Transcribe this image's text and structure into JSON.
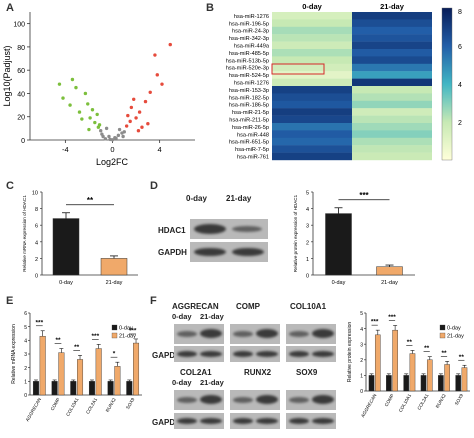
{
  "panels": {
    "A": {
      "letter": "A",
      "chart_data": {
        "type": "scatter",
        "xlabel": "Log2FC",
        "ylabel": "Log10(Padjust)",
        "xticks": [
          "-4",
          "0",
          "4"
        ],
        "yticks": [
          "0",
          "20",
          "40",
          "60",
          "80",
          "100"
        ],
        "xlim": [
          -7,
          7
        ],
        "ylim": [
          0,
          110
        ],
        "series": [
          {
            "color": "#7cbf3c",
            "points": [
              [
                -4.2,
                36
              ],
              [
                -3.6,
                30
              ],
              [
                -2.8,
                24
              ],
              [
                -2.3,
                40
              ],
              [
                -1.9,
                19
              ],
              [
                -1.5,
                15
              ],
              [
                -1.2,
                11
              ],
              [
                -2.1,
                31
              ],
              [
                -3.1,
                45
              ],
              [
                -1.7,
                26
              ],
              [
                -2.6,
                18
              ],
              [
                -1.3,
                22
              ],
              [
                -3.4,
                52
              ],
              [
                -2.0,
                9
              ],
              [
                -1.1,
                13
              ],
              [
                -4.5,
                48
              ]
            ]
          },
          {
            "color": "#e64b3c",
            "points": [
              [
                1.6,
                28
              ],
              [
                2.0,
                19
              ],
              [
                2.3,
                24
              ],
              [
                1.2,
                12
              ],
              [
                2.8,
                33
              ],
              [
                3.2,
                41
              ],
              [
                3.8,
                56
              ],
              [
                1.5,
                16
              ],
              [
                2.5,
                11
              ],
              [
                4.2,
                48
              ],
              [
                1.8,
                35
              ],
              [
                2.2,
                8
              ],
              [
                1.3,
                21
              ],
              [
                3.6,
                73
              ],
              [
                4.9,
                82
              ],
              [
                3.0,
                14
              ]
            ]
          },
          {
            "color": "#8c8c8c",
            "points": [
              [
                -0.6,
                1
              ],
              [
                -0.3,
                3
              ],
              [
                0.2,
                2
              ],
              [
                0.5,
                4
              ],
              [
                -0.9,
                5
              ],
              [
                0.8,
                6
              ],
              [
                -0.2,
                0.5
              ],
              [
                0.3,
                1.5
              ],
              [
                -1.0,
                8
              ],
              [
                1.0,
                7
              ],
              [
                -0.5,
                10
              ],
              [
                0.6,
                9
              ],
              [
                0.0,
                0.2
              ],
              [
                -0.8,
                3
              ],
              [
                0.9,
                3
              ]
            ]
          }
        ]
      }
    },
    "B": {
      "letter": "B",
      "chart_data": {
        "type": "heatmap",
        "columns": [
          "0-day",
          "21-day"
        ],
        "rows": [
          "hsa-miR-1276",
          "hsa-miR-196-5p",
          "hsa-miR-24-3p",
          "hsa-miR-342-3p",
          "hsa-miR-449a",
          "hsa-miR-485-5p",
          "hsa-miR-513b-5p",
          "hsa-miR-520e-3p",
          "hsa-miR-524-5p",
          "hsa-miR-1276",
          "hsa-miR-153-3p",
          "hsa-miR-182-5p",
          "hsa-miR-186-5p",
          "hsa-miR-21-5p",
          "hsa-miR-211-5p",
          "hsa-miR-26-5p",
          "hsa-miR-448",
          "hsa-miR-651-5p",
          "hsa-miR-7-5p",
          "hsa-miR-761"
        ],
        "values": [
          [
            1.5,
            7.0
          ],
          [
            2.0,
            6.5
          ],
          [
            2.5,
            6.0
          ],
          [
            2.2,
            6.3
          ],
          [
            1.8,
            6.8
          ],
          [
            2.4,
            6.1
          ],
          [
            2.0,
            6.6
          ],
          [
            1.6,
            5.4
          ],
          [
            1.0,
            4.5
          ],
          [
            1.8,
            7.2
          ],
          [
            6.9,
            2.0
          ],
          [
            6.5,
            2.3
          ],
          [
            6.2,
            2.8
          ],
          [
            7.0,
            1.7
          ],
          [
            6.7,
            2.2
          ],
          [
            5.5,
            2.6
          ],
          [
            6.1,
            3.0
          ],
          [
            5.8,
            2.4
          ],
          [
            6.4,
            2.1
          ],
          [
            6.9,
            1.9
          ]
        ],
        "colorbar_ticks": [
          "8",
          "6",
          "4",
          "2"
        ],
        "range": [
          0,
          8
        ]
      }
    },
    "C": {
      "letter": "C",
      "chart_data": {
        "type": "bar",
        "categories": [
          "0-day",
          "21-day"
        ],
        "values": [
          6.8,
          2.0
        ],
        "errors": [
          0.7,
          0.3
        ],
        "ylabel": "Relative mRNA expression of HDAC1",
        "yticks": [
          "0",
          "2",
          "4",
          "6",
          "8",
          "10"
        ],
        "ylim": [
          0,
          10
        ],
        "significance": "**",
        "colors": [
          "#1a1a1a",
          "#f0a96a"
        ]
      }
    },
    "D": {
      "letter": "D",
      "blot": {
        "col_labels": [
          "0-day",
          "21-day"
        ],
        "row_labels": [
          "HDAC1",
          "GAPDH"
        ]
      },
      "chart_data": {
        "type": "bar",
        "categories": [
          "0-day",
          "21-day"
        ],
        "values": [
          3.7,
          0.5
        ],
        "errors": [
          0.35,
          0.1
        ],
        "ylabel": "Relative protein expression of HDAC1",
        "yticks": [
          "0",
          "1",
          "2",
          "3",
          "4",
          "5"
        ],
        "ylim": [
          0,
          5
        ],
        "significance": "***",
        "colors": [
          "#1a1a1a",
          "#f0a96a"
        ]
      }
    },
    "E": {
      "letter": "E",
      "chart_data": {
        "type": "bar",
        "categories": [
          "AGGRECAN",
          "COMP",
          "COL10A1",
          "COL2A1",
          "RUNX2",
          "SOX9"
        ],
        "series": [
          {
            "name": "0-day",
            "color": "#1a1a1a",
            "values": [
              1.0,
              1.0,
              1.0,
              1.0,
              1.0,
              1.0
            ],
            "errors": [
              0.1,
              0.1,
              0.1,
              0.1,
              0.1,
              0.1
            ]
          },
          {
            "name": "21-day",
            "color": "#f0a96a",
            "values": [
              4.3,
              3.1,
              2.6,
              3.4,
              2.1,
              3.8
            ],
            "errors": [
              0.4,
              0.3,
              0.3,
              0.3,
              0.3,
              0.3
            ]
          }
        ],
        "ylabel": "Relative mRNA expression",
        "yticks": [
          "0",
          "1",
          "2",
          "3",
          "4",
          "5",
          "6"
        ],
        "ylim": [
          0,
          6
        ],
        "significance": [
          "***",
          "**",
          "**",
          "***",
          "*",
          "***"
        ],
        "legend_position": "top-right"
      }
    },
    "F": {
      "letter": "F",
      "blot_top": {
        "col_labels": [
          "0-day",
          "21-day"
        ],
        "proteins": [
          "AGGRECAN",
          "COMP",
          "COL10A1"
        ],
        "loading": "GAPDH"
      },
      "blot_bottom": {
        "col_labels": [
          "0-day",
          "21-day"
        ],
        "proteins": [
          "COL2A1",
          "RUNX2",
          "SOX9"
        ],
        "loading": "GAPDH"
      },
      "chart_data": {
        "type": "bar",
        "categories": [
          "AGGRECAN",
          "COMP",
          "COL10A1",
          "COL2A1",
          "RUNX2",
          "SOX9"
        ],
        "series": [
          {
            "name": "0-day",
            "color": "#1a1a1a",
            "values": [
              1.0,
              1.0,
              1.0,
              1.0,
              1.0,
              1.0
            ],
            "errors": [
              0.1,
              0.1,
              0.1,
              0.1,
              0.1,
              0.1
            ]
          },
          {
            "name": "21-day",
            "color": "#f0a96a",
            "values": [
              3.6,
              3.9,
              2.4,
              2.0,
              1.7,
              1.5
            ],
            "errors": [
              0.3,
              0.3,
              0.2,
              0.2,
              0.2,
              0.15
            ]
          }
        ],
        "ylabel": "Relative protein expression",
        "yticks": [
          "0",
          "1",
          "2",
          "3",
          "4",
          "5"
        ],
        "ylim": [
          0,
          5
        ],
        "significance": [
          "***",
          "***",
          "**",
          "**",
          "**",
          "**"
        ],
        "legend_position": "top-right"
      }
    }
  }
}
